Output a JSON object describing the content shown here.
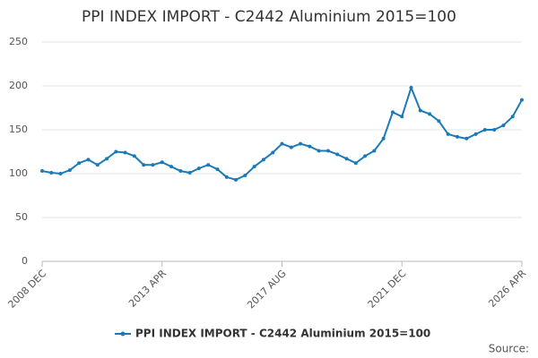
{
  "chart_data": {
    "type": "line",
    "title": "PPI INDEX IMPORT - C2442 Aluminium 2015=100",
    "source": "Source:",
    "categories": [
      "2008 DEC",
      null,
      null,
      null,
      null,
      null,
      null,
      null,
      null,
      null,
      null,
      null,
      null,
      "2013 APR",
      null,
      null,
      null,
      null,
      null,
      null,
      null,
      null,
      null,
      null,
      null,
      null,
      "2017 AUG",
      null,
      null,
      null,
      null,
      null,
      null,
      null,
      null,
      null,
      null,
      null,
      null,
      "2021 DEC",
      null,
      null,
      null,
      null,
      null,
      null,
      null,
      null,
      null,
      null,
      null,
      null,
      "2026 APR"
    ],
    "series": [
      {
        "name": "PPI INDEX IMPORT - C2442 Aluminium 2015=100",
        "color": "#1a7ab8",
        "values": [
          103,
          101,
          100,
          104,
          112,
          116,
          110,
          117,
          125,
          124,
          120,
          110,
          110,
          113,
          108,
          103,
          101,
          106,
          110,
          105,
          96,
          93,
          98,
          108,
          116,
          124,
          134,
          130,
          134,
          131,
          126,
          126,
          122,
          117,
          112,
          120,
          126,
          140,
          170,
          165,
          198,
          172,
          168,
          160,
          145,
          142,
          140,
          145,
          150,
          150,
          155,
          165,
          184
        ]
      }
    ],
    "ylim": [
      0,
      250
    ],
    "yticks": [
      0,
      50,
      100,
      150,
      200,
      250
    ],
    "grid": true
  }
}
